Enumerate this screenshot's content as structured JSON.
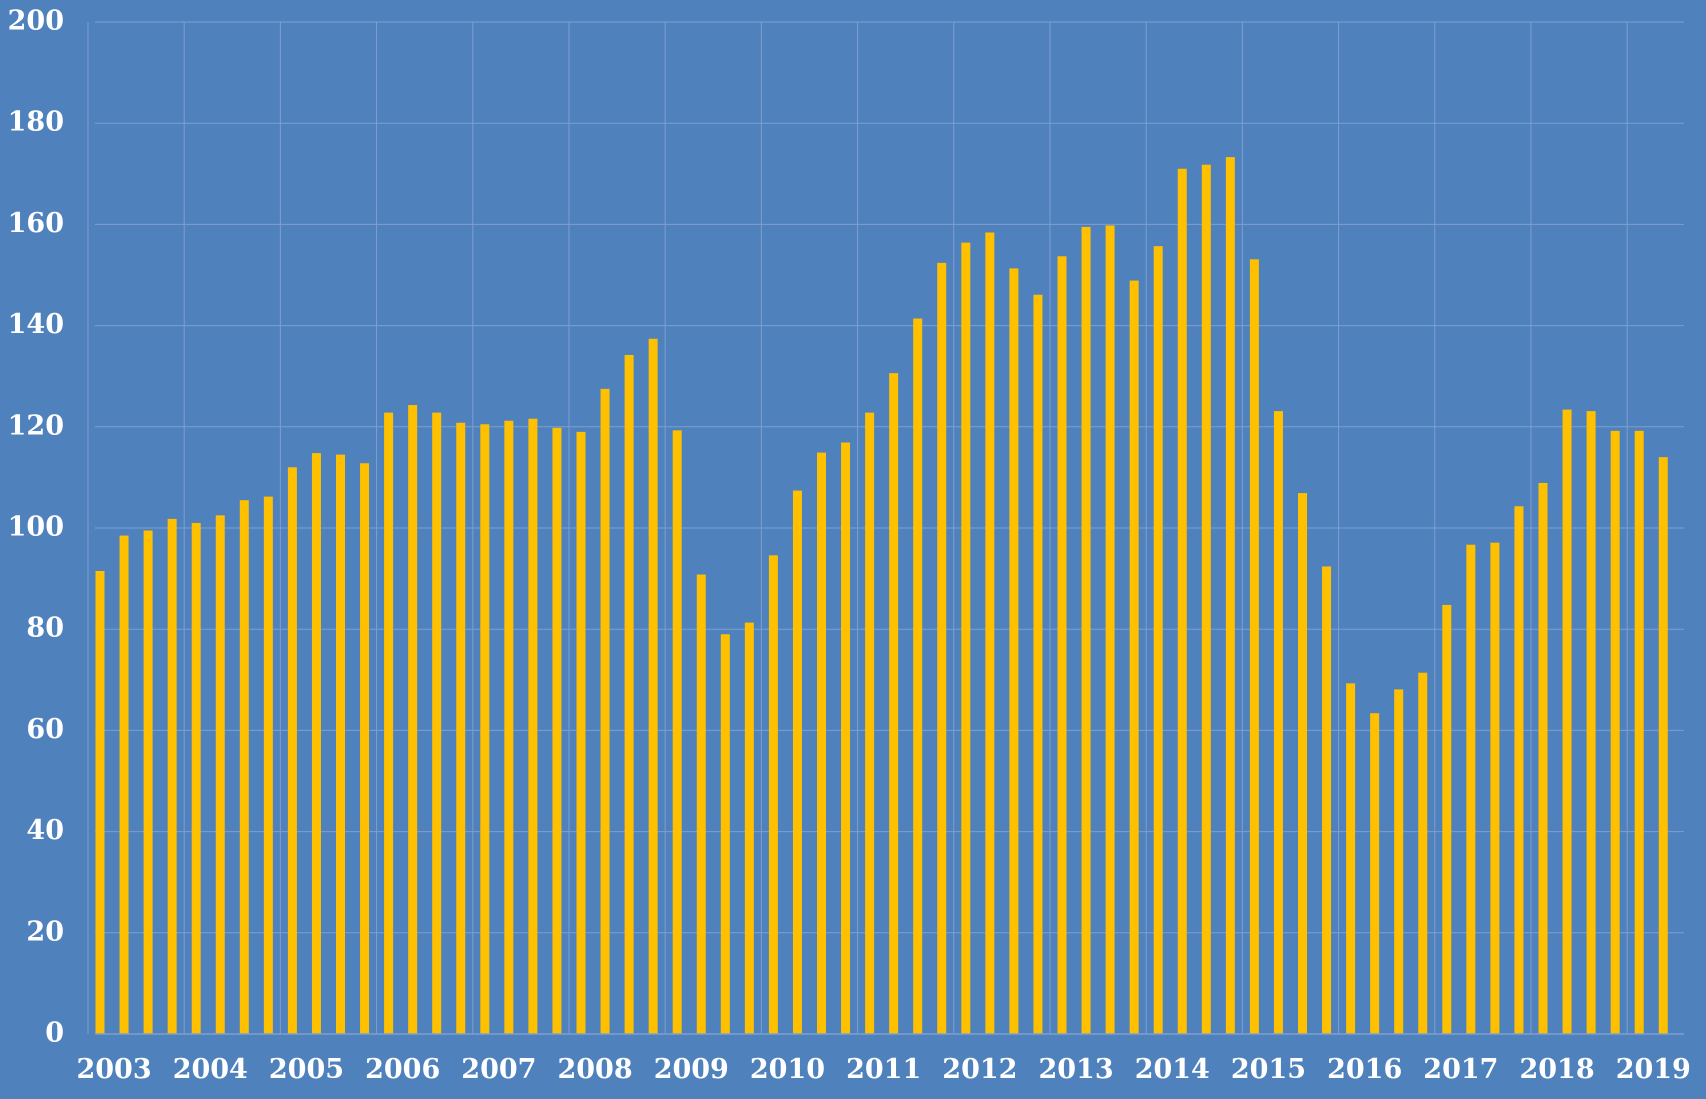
{
  "chart_data": {
    "type": "bar",
    "title": "",
    "xlabel": "",
    "ylabel": "",
    "ylim": [
      0,
      200
    ],
    "yticks": [
      0,
      20,
      40,
      60,
      80,
      100,
      120,
      140,
      160,
      180,
      200
    ],
    "xtick_labels": [
      "2003",
      "2004",
      "2005",
      "2006",
      "2007",
      "2008",
      "2009",
      "2010",
      "2011",
      "2012",
      "2013",
      "2014",
      "2015",
      "2016",
      "2017",
      "2018",
      "2019"
    ],
    "grid": true,
    "legend": "none",
    "colors": {
      "background": "#4f81bd",
      "bar": "#ffc000",
      "grid": "#7f9fcf",
      "text": "#ffffff"
    },
    "x": [
      "2003 Q1",
      "2003 Q2",
      "2003 Q3",
      "2003 Q4",
      "2004 Q1",
      "2004 Q2",
      "2004 Q3",
      "2004 Q4",
      "2005 Q1",
      "2005 Q2",
      "2005 Q3",
      "2005 Q4",
      "2006 Q1",
      "2006 Q2",
      "2006 Q3",
      "2006 Q4",
      "2007 Q1",
      "2007 Q2",
      "2007 Q3",
      "2007 Q4",
      "2008 Q1",
      "2008 Q2",
      "2008 Q3",
      "2008 Q4",
      "2009 Q1",
      "2009 Q2",
      "2009 Q3",
      "2009 Q4",
      "2010 Q1",
      "2010 Q2",
      "2010 Q3",
      "2010 Q4",
      "2011 Q1",
      "2011 Q2",
      "2011 Q3",
      "2011 Q4",
      "2012 Q1",
      "2012 Q2",
      "2012 Q3",
      "2012 Q4",
      "2013 Q1",
      "2013 Q2",
      "2013 Q3",
      "2013 Q4",
      "2014 Q1",
      "2014 Q2",
      "2014 Q3",
      "2014 Q4",
      "2015 Q1",
      "2015 Q2",
      "2015 Q3",
      "2015 Q4",
      "2016 Q1",
      "2016 Q2",
      "2016 Q3",
      "2016 Q4",
      "2017 Q1",
      "2017 Q2",
      "2017 Q3",
      "2017 Q4",
      "2018 Q1",
      "2018 Q2",
      "2018 Q3",
      "2018 Q4",
      "2019 Q1",
      "2019 Q2"
    ],
    "values": [
      91.5,
      98.5,
      99.5,
      101.8,
      101,
      102.5,
      105.5,
      106.2,
      112,
      114.8,
      114.5,
      112.8,
      122.8,
      124.3,
      122.8,
      120.8,
      120.5,
      121.2,
      121.6,
      119.8,
      119,
      127.5,
      134.2,
      137.4,
      119.3,
      90.8,
      79,
      81.3,
      94.6,
      107.4,
      114.9,
      116.9,
      122.8,
      130.6,
      141.4,
      152.4,
      156.4,
      158.4,
      151.3,
      146.1,
      153.7,
      159.5,
      159.8,
      148.9,
      155.7,
      171,
      171.8,
      173.3,
      153.1,
      123.1,
      106.9,
      92.4,
      69.3,
      63.4,
      68.1,
      71.4,
      84.8,
      96.7,
      97.1,
      104.3,
      108.9,
      123.4,
      123.1,
      119.2,
      119.2,
      114
    ]
  }
}
